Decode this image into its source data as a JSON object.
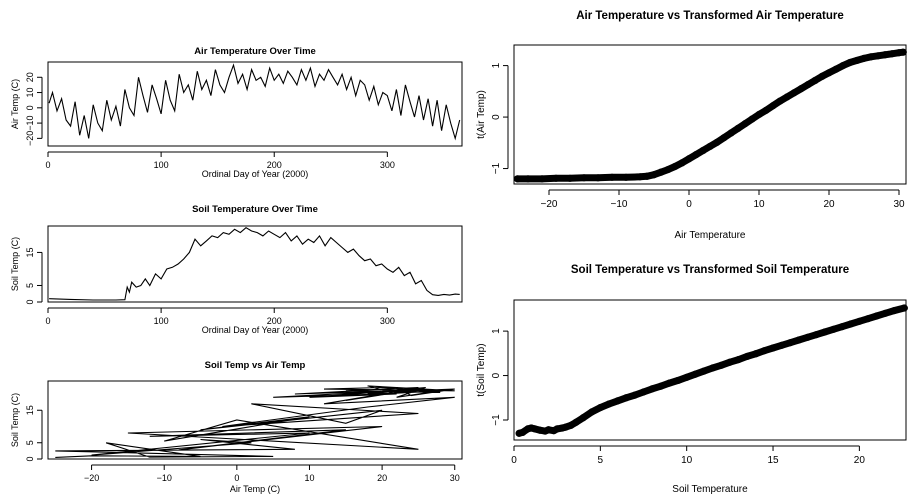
{
  "chart_data": [
    {
      "type": "line",
      "title": "Air Temperature Over Time",
      "xlabel": "Ordinal Day of Year (2000)",
      "ylabel": "Air Temp (C)",
      "xlim": [
        0,
        366
      ],
      "ylim": [
        -25,
        30
      ],
      "xticks": [
        0,
        100,
        200,
        300
      ],
      "yticks": [
        -20,
        -10,
        0,
        10,
        20
      ],
      "x": [
        1,
        4,
        8,
        12,
        16,
        20,
        24,
        28,
        32,
        36,
        40,
        44,
        48,
        52,
        56,
        60,
        64,
        68,
        72,
        76,
        80,
        84,
        88,
        92,
        96,
        100,
        104,
        108,
        112,
        116,
        120,
        124,
        128,
        132,
        136,
        140,
        144,
        148,
        152,
        156,
        160,
        164,
        168,
        172,
        176,
        180,
        184,
        188,
        192,
        196,
        200,
        204,
        208,
        212,
        216,
        220,
        224,
        228,
        232,
        236,
        240,
        244,
        248,
        252,
        256,
        260,
        264,
        268,
        272,
        276,
        280,
        284,
        288,
        292,
        296,
        300,
        304,
        308,
        312,
        316,
        320,
        324,
        328,
        332,
        336,
        340,
        344,
        348,
        352,
        356,
        360,
        364
      ],
      "y": [
        3,
        10,
        -2,
        6,
        -8,
        -12,
        4,
        -18,
        -5,
        -20,
        2,
        -10,
        -15,
        5,
        -8,
        1,
        -12,
        12,
        0,
        -5,
        20,
        8,
        -3,
        15,
        6,
        -4,
        18,
        5,
        -2,
        22,
        10,
        15,
        5,
        24,
        12,
        18,
        8,
        25,
        15,
        10,
        20,
        28,
        16,
        22,
        12,
        25,
        18,
        20,
        14,
        26,
        18,
        22,
        16,
        24,
        20,
        15,
        25,
        18,
        26,
        14,
        22,
        18,
        25,
        20,
        15,
        22,
        12,
        20,
        8,
        18,
        15,
        5,
        14,
        2,
        10,
        8,
        -2,
        12,
        -5,
        15,
        4,
        -6,
        8,
        -8,
        6,
        -12,
        5,
        -15,
        2,
        -10,
        -20,
        -8
      ],
      "line_color": "#000000"
    },
    {
      "type": "line",
      "title": "Soil Temperature Over Time",
      "xlabel": "Ordinal Day of Year (2000)",
      "ylabel": "Soil Temp (C)",
      "xlim": [
        0,
        366
      ],
      "ylim": [
        0,
        23
      ],
      "xticks": [
        0,
        100,
        200,
        300
      ],
      "yticks": [
        0,
        5,
        15
      ],
      "x": [
        1,
        20,
        40,
        60,
        68,
        70,
        72,
        74,
        78,
        82,
        86,
        90,
        95,
        100,
        105,
        110,
        115,
        120,
        125,
        130,
        135,
        140,
        145,
        150,
        155,
        160,
        165,
        170,
        175,
        180,
        185,
        190,
        195,
        200,
        205,
        210,
        215,
        220,
        225,
        230,
        235,
        240,
        245,
        250,
        255,
        260,
        265,
        270,
        275,
        280,
        285,
        290,
        295,
        300,
        305,
        310,
        315,
        320,
        325,
        330,
        335,
        340,
        345,
        350,
        355,
        360,
        364
      ],
      "y": [
        1,
        0.8,
        0.6,
        0.6,
        0.7,
        4.5,
        3,
        6,
        4.5,
        5,
        7,
        5,
        8.5,
        7,
        10,
        10.5,
        11.5,
        13,
        15,
        19,
        17,
        18.5,
        20,
        19.5,
        21,
        20.5,
        22,
        21,
        22.5,
        21.5,
        21,
        20,
        21.5,
        20.5,
        19.5,
        21,
        18.5,
        20,
        17.5,
        19,
        18,
        20,
        17,
        19.5,
        18,
        16.5,
        15,
        16,
        14,
        12.5,
        13,
        11,
        11.5,
        10,
        9,
        10.5,
        8,
        9,
        5.5,
        6.5,
        3.5,
        2.2,
        2,
        2.3,
        2.1,
        2.4,
        2.3
      ],
      "line_color": "#000000"
    },
    {
      "type": "line",
      "title": "Soil Temp vs Air Temp",
      "xlabel": "Air Temp (C)",
      "ylabel": "Soil Temp (C)",
      "xlim": [
        -26,
        31
      ],
      "ylim": [
        0,
        24
      ],
      "xticks": [
        -20,
        -10,
        0,
        10,
        20,
        30
      ],
      "yticks": [
        0,
        5,
        15
      ],
      "x": [
        -25,
        -20,
        -5,
        -18,
        -12,
        5,
        -25,
        8,
        -5,
        2,
        -20,
        10,
        -12,
        15,
        -8,
        20,
        -15,
        25,
        0,
        -10,
        10,
        -5,
        20,
        15,
        2,
        25,
        -2,
        18,
        30,
        12,
        20,
        5,
        22,
        8,
        25,
        15,
        28,
        20,
        12,
        30,
        18,
        22,
        10,
        25,
        15,
        20,
        28,
        22,
        24,
        30,
        18,
        26,
        22,
        28,
        18,
        24
      ],
      "y": [
        0.5,
        1,
        0.8,
        5,
        0.6,
        0.8,
        2.5,
        3,
        6,
        5,
        1.2,
        8,
        7,
        9,
        2.8,
        10,
        8,
        3,
        12,
        5.5,
        13,
        9,
        15,
        11,
        17,
        14,
        10,
        16,
        19,
        17,
        20,
        19,
        21,
        20,
        22,
        21,
        20.5,
        22,
        21.5,
        21,
        22.5,
        20,
        19,
        21.5,
        18,
        20,
        21,
        22,
        19.5,
        21.5,
        20.5,
        22,
        19,
        21,
        20,
        21.5
      ],
      "line_color": "#000000"
    },
    {
      "type": "scatter",
      "title": "Air Temperature vs Transformed Air Temperature",
      "xlabel": "Air Temperature",
      "ylabel": "t(Air Temp)",
      "xlim": [
        -25,
        31
      ],
      "ylim": [
        -1.3,
        1.4
      ],
      "xticks": [
        -20,
        -10,
        0,
        10,
        20,
        30
      ],
      "yticks": [
        -1.0,
        0.0,
        1.0
      ],
      "x": [
        -24.5,
        -23,
        -21,
        -19,
        -17,
        -15,
        -13,
        -11,
        -9,
        -7,
        -6,
        -5,
        -4,
        -3,
        -2,
        -1,
        0,
        1,
        2,
        3,
        4,
        5,
        6,
        7,
        8,
        9,
        10,
        11,
        12,
        13,
        14,
        15,
        16,
        17,
        18,
        19,
        20,
        21,
        22,
        23,
        24,
        25,
        26,
        27,
        28,
        29,
        30,
        30.6
      ],
      "y": [
        -1.2,
        -1.2,
        -1.2,
        -1.19,
        -1.19,
        -1.18,
        -1.18,
        -1.17,
        -1.17,
        -1.16,
        -1.15,
        -1.12,
        -1.07,
        -1.02,
        -0.96,
        -0.89,
        -0.81,
        -0.73,
        -0.65,
        -0.57,
        -0.49,
        -0.4,
        -0.31,
        -0.22,
        -0.13,
        -0.04,
        0.05,
        0.13,
        0.22,
        0.31,
        0.39,
        0.47,
        0.55,
        0.63,
        0.71,
        0.79,
        0.86,
        0.93,
        1,
        1.06,
        1.1,
        1.14,
        1.17,
        1.19,
        1.21,
        1.23,
        1.25,
        1.26
      ],
      "marker_color": "#000000"
    },
    {
      "type": "scatter",
      "title": "Soil Temperature vs Transformed Soil Temperature",
      "xlabel": "Soil Temperature",
      "ylabel": "t(Soil Temp)",
      "xlim": [
        0,
        22.7
      ],
      "ylim": [
        -1.45,
        1.7
      ],
      "xticks": [
        0,
        5,
        10,
        15,
        20
      ],
      "yticks": [
        -1.0,
        0.0,
        1.0
      ],
      "x": [
        0.3,
        0.5,
        0.8,
        1,
        1.2,
        1.5,
        1.8,
        2,
        2.3,
        2.5,
        2.8,
        3,
        3.3,
        3.6,
        4,
        4.5,
        5,
        5.5,
        6,
        6.5,
        7,
        7.5,
        8,
        8.5,
        9,
        9.5,
        10,
        10.5,
        11,
        11.5,
        12,
        12.5,
        13,
        13.5,
        14,
        14.5,
        15,
        15.5,
        16,
        16.5,
        17,
        17.5,
        18,
        18.5,
        19,
        19.5,
        20,
        20.5,
        21,
        21.5,
        22,
        22.6
      ],
      "y": [
        -1.3,
        -1.28,
        -1.2,
        -1.18,
        -1.2,
        -1.23,
        -1.25,
        -1.22,
        -1.24,
        -1.2,
        -1.18,
        -1.16,
        -1.12,
        -1.05,
        -0.95,
        -0.82,
        -0.72,
        -0.64,
        -0.57,
        -0.5,
        -0.44,
        -0.37,
        -0.3,
        -0.24,
        -0.17,
        -0.11,
        -0.04,
        0.03,
        0.1,
        0.17,
        0.23,
        0.3,
        0.36,
        0.43,
        0.49,
        0.56,
        0.62,
        0.68,
        0.74,
        0.8,
        0.86,
        0.92,
        0.98,
        1.04,
        1.1,
        1.16,
        1.22,
        1.28,
        1.34,
        1.4,
        1.46,
        1.52
      ],
      "marker_color": "#000000"
    }
  ]
}
